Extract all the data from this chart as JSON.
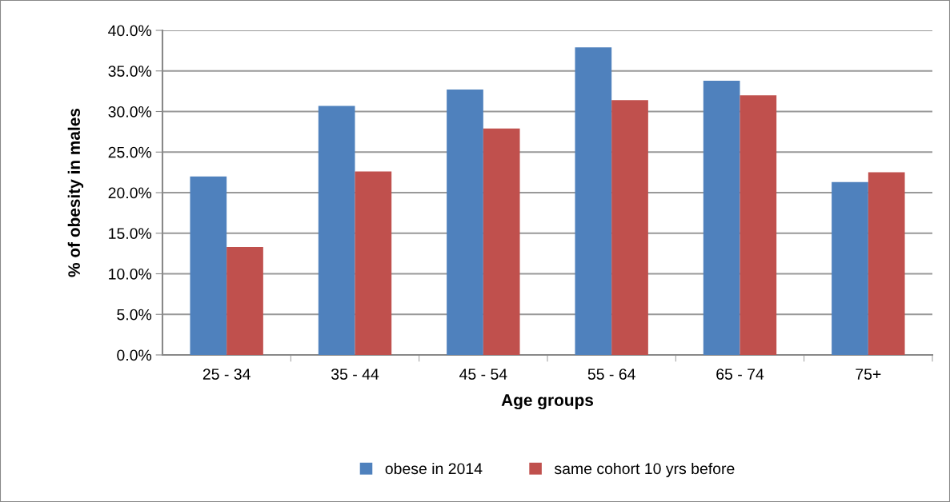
{
  "chart_data": {
    "type": "bar",
    "xlabel": "Age groups",
    "ylabel": "% of obesity in males",
    "categories": [
      "25 - 34",
      "35 - 44",
      "45 - 54",
      "55 - 64",
      "65 - 74",
      "75+"
    ],
    "series": [
      {
        "name": "obese in 2014",
        "color": "#4f81bd",
        "values": [
          22.0,
          30.7,
          32.7,
          37.9,
          33.8,
          21.3
        ]
      },
      {
        "name": "same cohort 10 yrs before",
        "color": "#c0504d",
        "values": [
          13.3,
          22.6,
          27.9,
          31.4,
          32.0,
          22.5
        ]
      }
    ],
    "ylim": [
      0,
      40
    ],
    "yticks": [
      {
        "value": 0,
        "label": "0.0%"
      },
      {
        "value": 5,
        "label": "5.0%"
      },
      {
        "value": 10,
        "label": "10.0%"
      },
      {
        "value": 15,
        "label": "15.0%"
      },
      {
        "value": 20,
        "label": "20.0%"
      },
      {
        "value": 25,
        "label": "25.0%"
      },
      {
        "value": 30,
        "label": "30.0%"
      },
      {
        "value": 35,
        "label": "35.0%"
      },
      {
        "value": 40,
        "label": "40.0%"
      }
    ],
    "grid": "y",
    "legend": "bottom"
  }
}
